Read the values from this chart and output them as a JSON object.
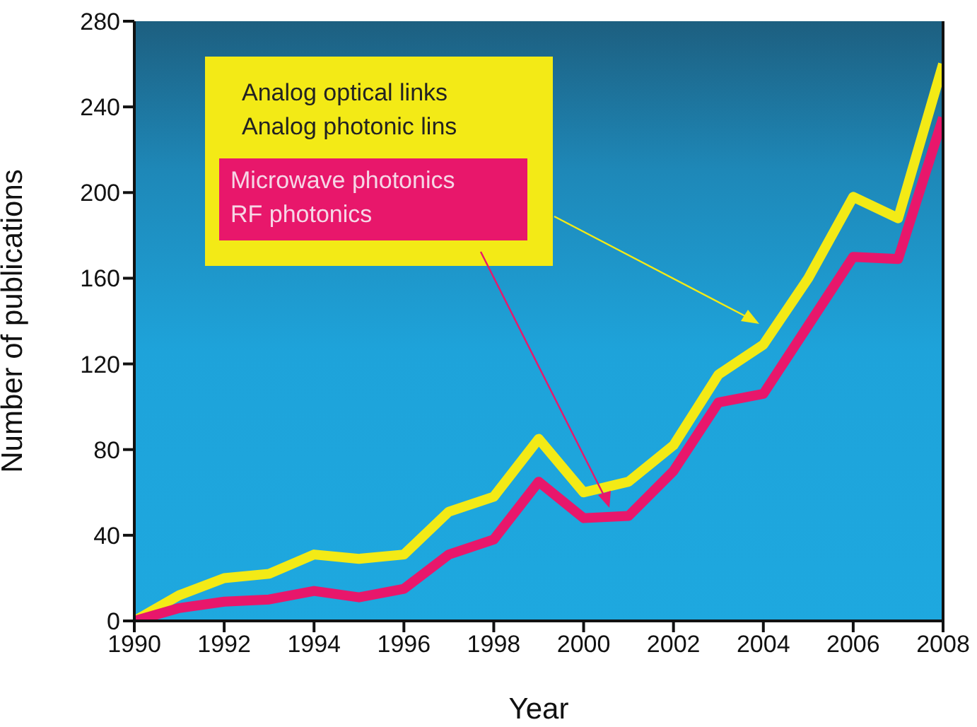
{
  "chart_data": {
    "type": "line",
    "xlabel": "Year",
    "ylabel": "Number of publications",
    "x": [
      1990,
      1991,
      1992,
      1993,
      1994,
      1995,
      1996,
      1997,
      1998,
      1999,
      2000,
      2001,
      2002,
      2003,
      2004,
      2005,
      2006,
      2007,
      2008
    ],
    "series": [
      {
        "name": "Analog optical links\nAnalog photonic lins",
        "color": "#f3ea16",
        "values": [
          0,
          12,
          20,
          22,
          31,
          29,
          31,
          51,
          58,
          85,
          60,
          65,
          82,
          115,
          129,
          160,
          198,
          188,
          260
        ]
      },
      {
        "name": "Microwave photonics\nRF photonics",
        "color": "#e8176b",
        "values": [
          0,
          6,
          9,
          10,
          14,
          11,
          15,
          31,
          38,
          65,
          48,
          49,
          70,
          102,
          106,
          138,
          170,
          169,
          235
        ]
      }
    ],
    "xlim": [
      1990,
      2008
    ],
    "xticks": [
      1990,
      1992,
      1994,
      1996,
      1998,
      2000,
      2002,
      2004,
      2006,
      2008
    ],
    "ylim": [
      0,
      280
    ],
    "yticks": [
      0,
      40,
      80,
      120,
      160,
      200,
      240,
      280
    ],
    "legend": "top left",
    "marker": "none",
    "line_style": "solid"
  }
}
